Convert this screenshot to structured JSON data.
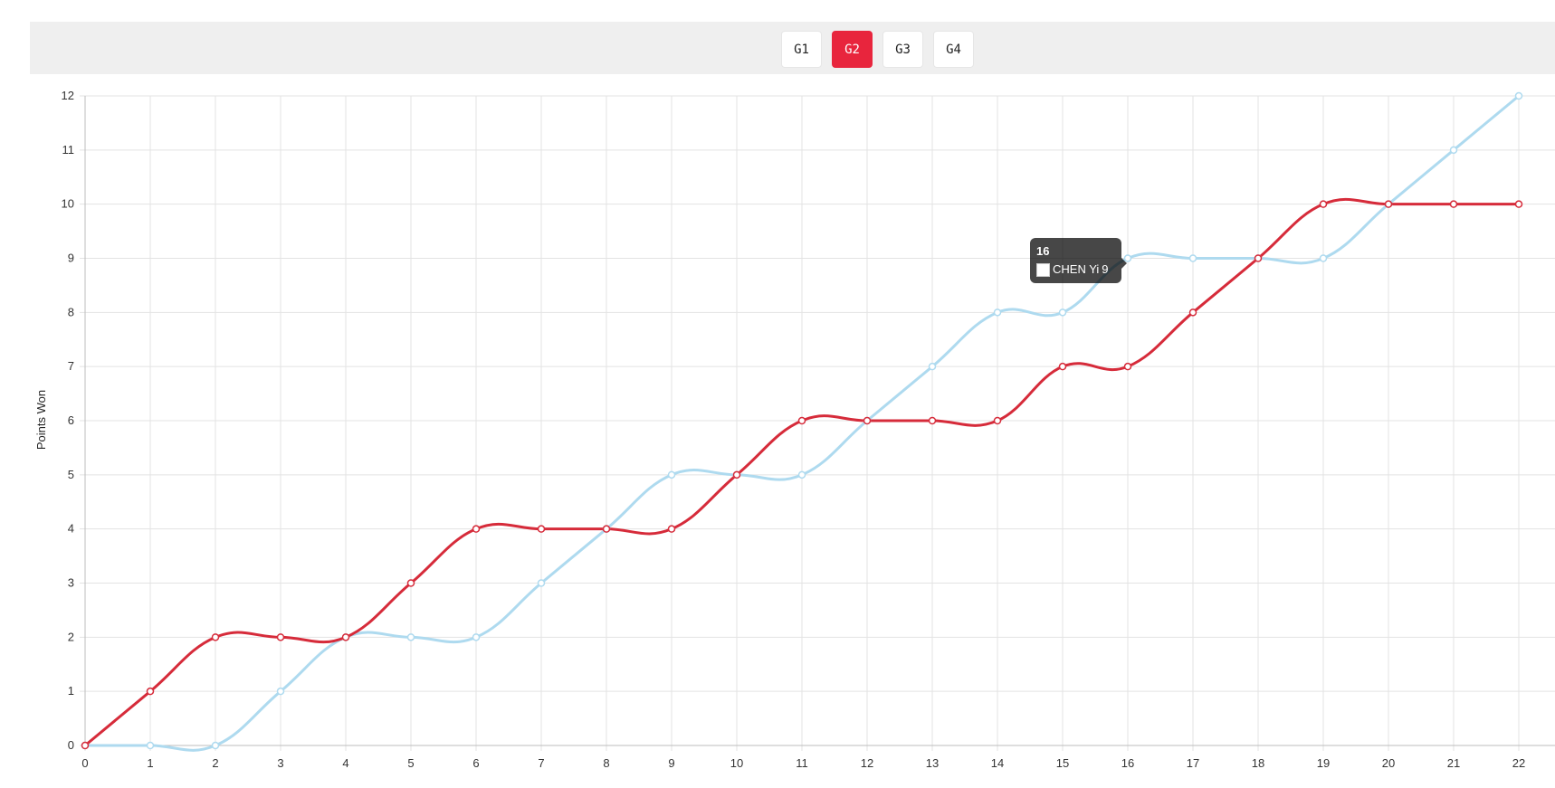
{
  "tabs": [
    {
      "label": "G1",
      "active": false
    },
    {
      "label": "G2",
      "active": true
    },
    {
      "label": "G3",
      "active": false
    },
    {
      "label": "G4",
      "active": false
    }
  ],
  "colors": {
    "accent": "#e8253d",
    "series_red": "#d62b3a",
    "series_blue": "#aedaef"
  },
  "tooltip": {
    "title": "16",
    "label": "CHEN Yi",
    "value": "9"
  },
  "chart_data": {
    "type": "line",
    "ylabel": "Points Won",
    "xlabel": "",
    "x": [
      0,
      1,
      2,
      3,
      4,
      5,
      6,
      7,
      8,
      9,
      10,
      11,
      12,
      13,
      14,
      15,
      16,
      17,
      18,
      19,
      20,
      21,
      22
    ],
    "xlim": [
      0,
      22
    ],
    "ylim": [
      0,
      12
    ],
    "grid": true,
    "series": [
      {
        "color": "#aedaef",
        "values": [
          0,
          0,
          0,
          1,
          2,
          2,
          2,
          3,
          4,
          5,
          5,
          5,
          6,
          7,
          8,
          8,
          9,
          9,
          9,
          9,
          10,
          11,
          12
        ]
      },
      {
        "color": "#d62b3a",
        "values": [
          0,
          1,
          2,
          2,
          2,
          3,
          4,
          4,
          4,
          4,
          5,
          6,
          6,
          6,
          6,
          7,
          7,
          8,
          9,
          10,
          10,
          10,
          10
        ]
      }
    ]
  }
}
